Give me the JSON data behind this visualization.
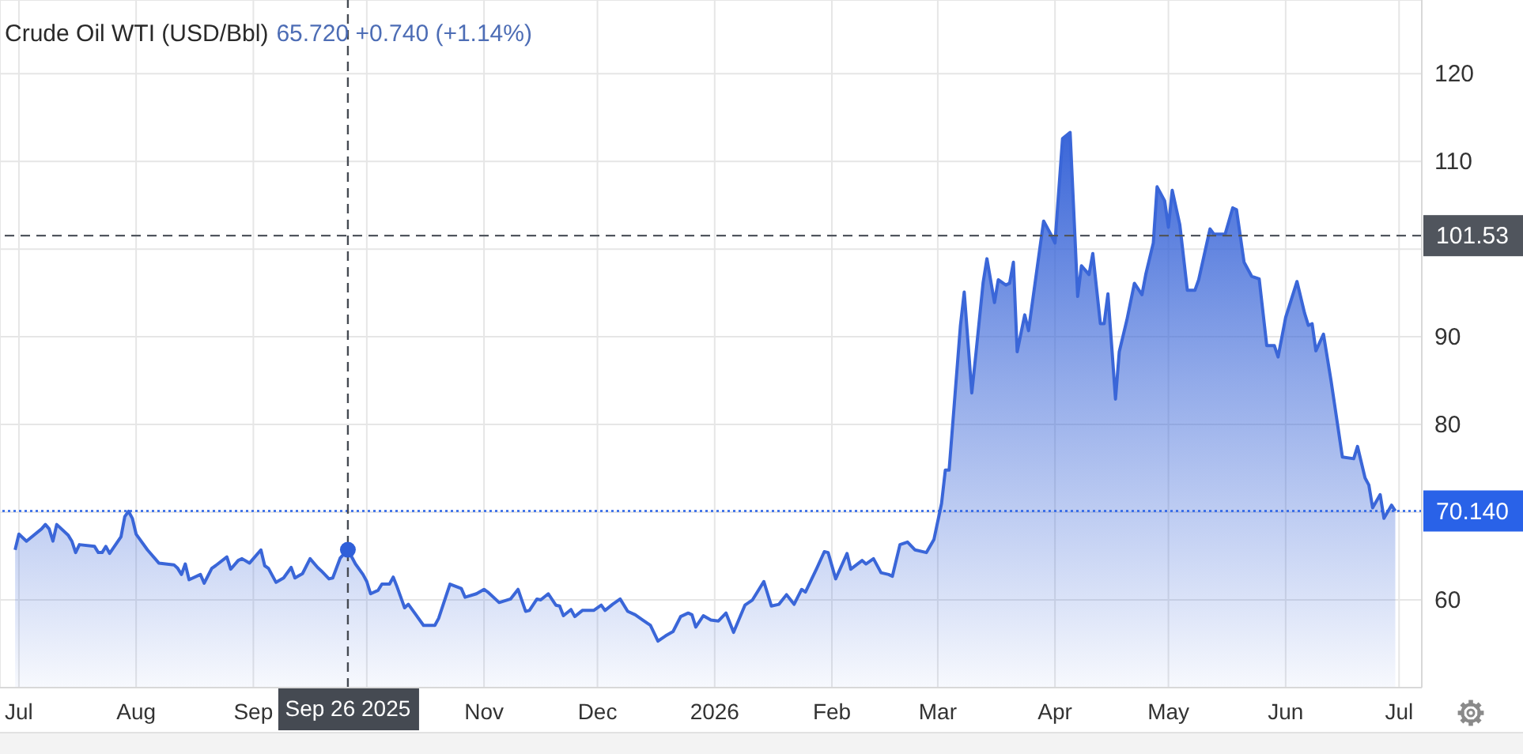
{
  "chart_data": {
    "type": "area",
    "title": "Crude Oil WTI (USD/Bbl)",
    "subtitle": "65.720  +0.740 (+1.14%)",
    "xlim": [
      "2025-06-26",
      "2026-07-07"
    ],
    "xticks": [
      {
        "value": "2025-07-01",
        "label": "Jul"
      },
      {
        "value": "2025-08-01",
        "label": "Aug"
      },
      {
        "value": "2025-09-01",
        "label": "Sep"
      },
      {
        "value": "2025-10-01",
        "label": null
      },
      {
        "value": "2025-11-01",
        "label": "Nov"
      },
      {
        "value": "2025-12-01",
        "label": "Dec"
      },
      {
        "value": "2026-01-01",
        "label": "2026"
      },
      {
        "value": "2026-02-01",
        "label": "Feb"
      },
      {
        "value": "2026-03-01",
        "label": "Mar"
      },
      {
        "value": "2026-04-01",
        "label": "Apr"
      },
      {
        "value": "2026-05-01",
        "label": "May"
      },
      {
        "value": "2026-06-01",
        "label": "Jun"
      },
      {
        "value": "2026-07-01",
        "label": "Jul"
      }
    ],
    "ylim": [
      50,
      128.4
    ],
    "yticks": [
      60,
      {
        "value": 70,
        "label": null
      },
      80,
      90,
      {
        "value": 100,
        "label": null
      },
      110,
      120
    ],
    "grid": true,
    "ref_lines": [
      {
        "axis": "y",
        "value": 101.53,
        "label": "101.53",
        "color": "#50555d",
        "line_style": "dashed"
      },
      {
        "axis": "y",
        "value": 70.14,
        "label": "70.140",
        "color": "#2962e8",
        "line_style": "dotted"
      },
      {
        "axis": "x",
        "value": "2025-09-26",
        "label": "Sep 26 2025",
        "color": "#454a52",
        "line_style": "dashed"
      }
    ],
    "series": [
      {
        "color": "#3a66d8",
        "x": [
          "2025-06-30",
          "2025-07-01",
          "2025-07-03",
          "2025-07-07",
          "2025-07-08",
          "2025-07-09",
          "2025-07-10",
          "2025-07-11",
          "2025-07-14",
          "2025-07-15",
          "2025-07-16",
          "2025-07-17",
          "2025-07-21",
          "2025-07-22",
          "2025-07-23",
          "2025-07-24",
          "2025-07-25",
          "2025-07-28",
          "2025-07-29",
          "2025-07-30",
          "2025-07-31",
          "2025-08-01",
          "2025-08-04",
          "2025-08-07",
          "2025-08-11",
          "2025-08-12",
          "2025-08-13",
          "2025-08-14",
          "2025-08-15",
          "2025-08-18",
          "2025-08-19",
          "2025-08-21",
          "2025-08-22",
          "2025-08-25",
          "2025-08-26",
          "2025-08-28",
          "2025-08-29",
          "2025-08-31",
          "2025-09-03",
          "2025-09-04",
          "2025-09-05",
          "2025-09-07",
          "2025-09-09",
          "2025-09-11",
          "2025-09-12",
          "2025-09-14",
          "2025-09-16",
          "2025-09-18",
          "2025-09-19",
          "2025-09-21",
          "2025-09-22",
          "2025-09-24",
          "2025-09-26",
          "2025-09-28",
          "2025-09-30",
          "2025-10-01",
          "2025-10-02",
          "2025-10-04",
          "2025-10-05",
          "2025-10-07",
          "2025-10-08",
          "2025-10-09",
          "2025-10-11",
          "2025-10-12",
          "2025-10-14",
          "2025-10-16",
          "2025-10-19",
          "2025-10-20",
          "2025-10-23",
          "2025-10-26",
          "2025-10-27",
          "2025-10-30",
          "2025-11-01",
          "2025-11-02",
          "2025-11-05",
          "2025-11-08",
          "2025-11-10",
          "2025-11-12",
          "2025-11-13",
          "2025-11-15",
          "2025-11-16",
          "2025-11-18",
          "2025-11-20",
          "2025-11-21",
          "2025-11-22",
          "2025-11-24",
          "2025-11-25",
          "2025-11-27",
          "2025-11-30",
          "2025-12-02",
          "2025-12-03",
          "2025-12-05",
          "2025-12-07",
          "2025-12-09",
          "2025-12-11",
          "2025-12-13",
          "2025-12-15",
          "2025-12-17",
          "2025-12-19",
          "2025-12-21",
          "2025-12-23",
          "2025-12-25",
          "2025-12-26",
          "2025-12-27",
          "2025-12-29",
          "2025-12-31",
          "2026-01-02",
          "2026-01-04",
          "2026-01-06",
          "2026-01-09",
          "2026-01-11",
          "2026-01-14",
          "2026-01-16",
          "2026-01-18",
          "2026-01-20",
          "2026-01-22",
          "2026-01-24",
          "2026-01-25",
          "2026-01-27",
          "2026-01-28",
          "2026-01-30",
          "2026-01-31",
          "2026-02-02",
          "2026-02-05",
          "2026-02-06",
          "2026-02-09",
          "2026-02-10",
          "2026-02-12",
          "2026-02-14",
          "2026-02-16",
          "2026-02-17",
          "2026-02-19",
          "2026-02-21",
          "2026-02-23",
          "2026-02-26",
          "2026-02-28",
          "2026-03-02",
          "2026-03-03",
          "2026-03-04",
          "2026-03-07",
          "2026-03-08",
          "2026-03-10",
          "2026-03-11",
          "2026-03-13",
          "2026-03-14",
          "2026-03-16",
          "2026-03-17",
          "2026-03-19",
          "2026-03-20",
          "2026-03-21",
          "2026-03-22",
          "2026-03-24",
          "2026-03-25",
          "2026-03-28",
          "2026-03-29",
          "2026-03-31",
          "2026-04-01",
          "2026-04-03",
          "2026-04-05",
          "2026-04-07",
          "2026-04-08",
          "2026-04-10",
          "2026-04-11",
          "2026-04-13",
          "2026-04-14",
          "2026-04-15",
          "2026-04-17",
          "2026-04-18",
          "2026-04-20",
          "2026-04-22",
          "2026-04-24",
          "2026-04-25",
          "2026-04-27",
          "2026-04-28",
          "2026-04-30",
          "2026-05-01",
          "2026-05-02",
          "2026-05-04",
          "2026-05-06",
          "2026-05-08",
          "2026-05-09",
          "2026-05-12",
          "2026-05-13",
          "2026-05-16",
          "2026-05-18",
          "2026-05-19",
          "2026-05-21",
          "2026-05-23",
          "2026-05-25",
          "2026-05-27",
          "2026-05-29",
          "2026-05-30",
          "2026-06-01",
          "2026-06-04",
          "2026-06-06",
          "2026-06-07",
          "2026-06-08",
          "2026-06-09",
          "2026-06-11",
          "2026-06-13",
          "2026-06-16",
          "2026-06-19",
          "2026-06-20",
          "2026-06-22",
          "2026-06-23",
          "2026-06-24",
          "2026-06-26",
          "2026-06-27",
          "2026-06-29",
          "2026-06-30"
        ],
        "values": [
          65.7,
          67.5,
          66.7,
          68.1,
          68.6,
          68.1,
          66.7,
          68.6,
          67.4,
          66.7,
          65.4,
          66.3,
          66.1,
          65.4,
          65.4,
          66.1,
          65.3,
          67.2,
          69.5,
          70.1,
          69.3,
          67.5,
          65.7,
          64.2,
          64.0,
          63.6,
          62.9,
          64.1,
          62.3,
          62.9,
          61.9,
          63.6,
          63.9,
          64.9,
          63.5,
          64.5,
          64.7,
          64.2,
          65.7,
          63.9,
          63.6,
          62.0,
          62.5,
          63.7,
          62.5,
          63.0,
          64.7,
          63.7,
          63.3,
          62.4,
          62.5,
          64.8,
          65.72,
          64.1,
          62.9,
          62.1,
          60.7,
          61.1,
          61.8,
          61.8,
          62.6,
          61.5,
          59.1,
          59.5,
          58.3,
          57.1,
          57.1,
          57.9,
          61.8,
          61.3,
          60.3,
          60.7,
          61.2,
          60.9,
          59.7,
          60.1,
          61.2,
          58.7,
          58.8,
          60.1,
          60.0,
          60.7,
          59.4,
          59.3,
          58.2,
          58.9,
          58.1,
          58.8,
          58.8,
          59.4,
          58.8,
          59.5,
          60.1,
          58.7,
          58.3,
          57.7,
          57.1,
          55.3,
          55.9,
          56.4,
          58.1,
          58.5,
          58.3,
          56.9,
          58.2,
          57.7,
          57.6,
          58.5,
          56.3,
          59.4,
          60.0,
          62.1,
          59.3,
          59.5,
          60.6,
          59.5,
          61.2,
          60.9,
          62.7,
          63.6,
          65.5,
          65.4,
          62.4,
          65.3,
          63.5,
          64.5,
          64.1,
          64.7,
          63.1,
          62.9,
          62.7,
          66.3,
          66.6,
          65.7,
          65.4,
          66.9,
          71.0,
          74.8,
          74.8,
          91.3,
          95.1,
          83.6,
          87.7,
          96.2,
          98.9,
          93.9,
          96.5,
          95.9,
          96.1,
          98.5,
          88.3,
          92.5,
          90.7,
          100.1,
          103.2,
          101.6,
          100.7,
          112.6,
          113.3,
          94.6,
          98.1,
          97.1,
          99.5,
          91.5,
          91.5,
          94.9,
          82.9,
          88.3,
          91.9,
          96.1,
          94.8,
          97.1,
          100.7,
          107.1,
          105.5,
          102.5,
          106.7,
          102.8,
          95.3,
          95.3,
          96.5,
          102.3,
          101.7,
          101.7,
          104.7,
          104.5,
          98.5,
          96.9,
          96.6,
          89.0,
          89.0,
          87.7,
          92.2,
          96.3,
          92.7,
          91.3,
          91.5,
          88.4,
          90.3,
          85.0,
          76.3,
          76.1,
          77.5,
          73.9,
          73.1,
          70.5,
          72.0,
          69.3,
          70.8,
          70.14
        ]
      },
      {
        "type": "scatter",
        "color": "#2f5fd9",
        "marker": "circle",
        "x": [
          "2025-09-26"
        ],
        "values": [
          65.72
        ]
      }
    ]
  }
}
